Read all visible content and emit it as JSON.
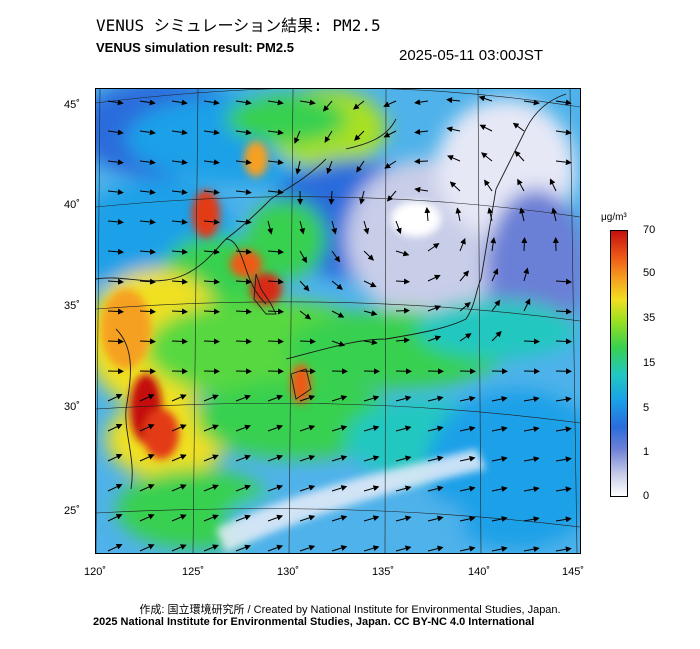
{
  "title_jp": "VENUS シミュレーション結果: PM2.5",
  "title_en": "VENUS simulation result: PM2.5",
  "timestamp": "2025-05-11 03:00JST",
  "lat_labels": [
    "45˚",
    "40˚",
    "35˚",
    "30˚",
    "25˚"
  ],
  "lon_labels": [
    "120˚",
    "125˚",
    "130˚",
    "135˚",
    "140˚",
    "145˚"
  ],
  "colorbar": {
    "unit": "μg/m³",
    "ticks": [
      "70",
      "50",
      "35",
      "15",
      "5",
      "1",
      "0"
    ]
  },
  "credit_line1": "作成: 国立環境研究所 / Created by National Institute for Environmental Studies, Japan.",
  "credit_line2": "2025 National Institute for Environmental Studies, Japan. CC BY-NC 4.0 International"
}
